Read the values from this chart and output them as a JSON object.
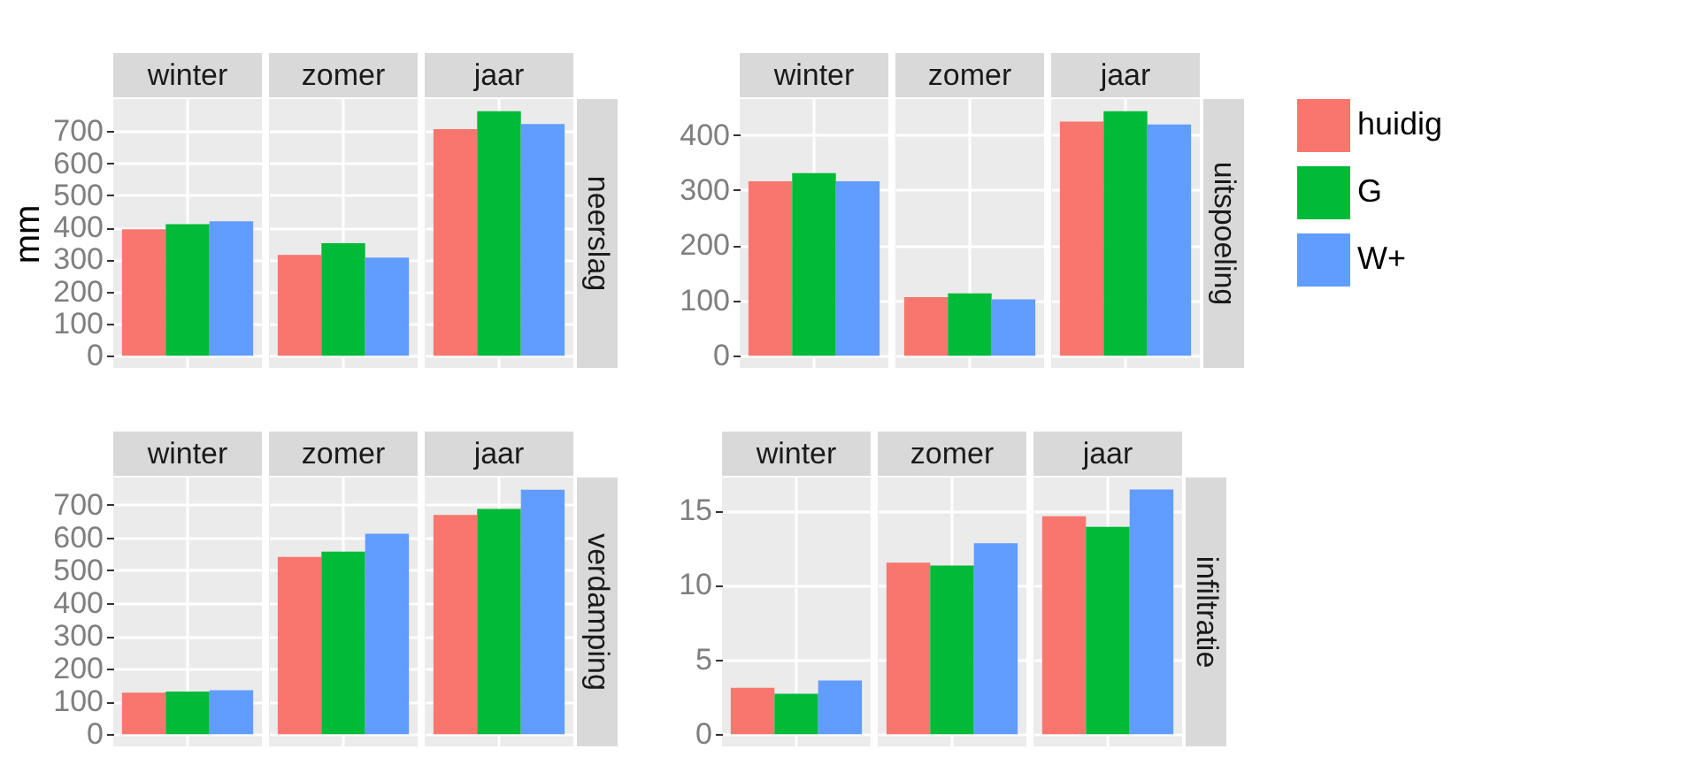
{
  "chart_data": [
    {
      "type": "bar",
      "title": "neerslag",
      "ylabel": "mm",
      "categories": [
        "winter",
        "zomer",
        "jaar"
      ],
      "series": [
        {
          "name": "huidig",
          "color": "#f8766d",
          "values": [
            394,
            314,
            706
          ]
        },
        {
          "name": "G",
          "color": "#00ba38",
          "values": [
            410,
            351,
            762
          ]
        },
        {
          "name": "W+",
          "color": "#619cff",
          "values": [
            419,
            306,
            722
          ]
        }
      ],
      "ylim": [
        -38,
        800
      ],
      "yticks": [
        0,
        100,
        200,
        300,
        400,
        500,
        600,
        700
      ],
      "grid": true,
      "tick_labels": "y",
      "legend": "right"
    },
    {
      "type": "bar",
      "title": "uitspoeling",
      "categories": [
        "winter",
        "zomer",
        "jaar"
      ],
      "series": [
        {
          "name": "huidig",
          "color": "#f8766d",
          "values": [
            316,
            106,
            424
          ]
        },
        {
          "name": "G",
          "color": "#00ba38",
          "values": [
            331,
            113,
            443
          ]
        },
        {
          "name": "W+",
          "color": "#619cff",
          "values": [
            316,
            102,
            419
          ]
        }
      ],
      "ylim": [
        -22,
        465
      ],
      "yticks": [
        0,
        100,
        200,
        300,
        400
      ],
      "grid": true,
      "tick_labels": "y",
      "legend": "right"
    },
    {
      "type": "bar",
      "title": "verdamping",
      "categories": [
        "winter",
        "zomer",
        "jaar"
      ],
      "series": [
        {
          "name": "huidig",
          "color": "#f8766d",
          "values": [
            127,
            541,
            669
          ]
        },
        {
          "name": "G",
          "color": "#00ba38",
          "values": [
            130,
            557,
            687
          ]
        },
        {
          "name": "W+",
          "color": "#619cff",
          "values": [
            134,
            612,
            746
          ]
        }
      ],
      "ylim": [
        -37,
        783
      ],
      "yticks": [
        0,
        100,
        200,
        300,
        400,
        500,
        600,
        700
      ],
      "grid": true,
      "tick_labels": "y",
      "legend": "right"
    },
    {
      "type": "bar",
      "title": "infiltratie",
      "categories": [
        "winter",
        "zomer",
        "jaar"
      ],
      "series": [
        {
          "name": "huidig",
          "color": "#f8766d",
          "values": [
            3.1,
            11.5,
            14.6
          ]
        },
        {
          "name": "G",
          "color": "#00ba38",
          "values": [
            2.7,
            11.3,
            13.9
          ]
        },
        {
          "name": "W+",
          "color": "#619cff",
          "values": [
            3.6,
            12.8,
            16.4
          ]
        }
      ],
      "ylim": [
        -0.82,
        17.2
      ],
      "yticks": [
        0,
        5,
        10,
        15
      ],
      "grid": true,
      "tick_labels": "y",
      "legend": "right"
    }
  ]
}
